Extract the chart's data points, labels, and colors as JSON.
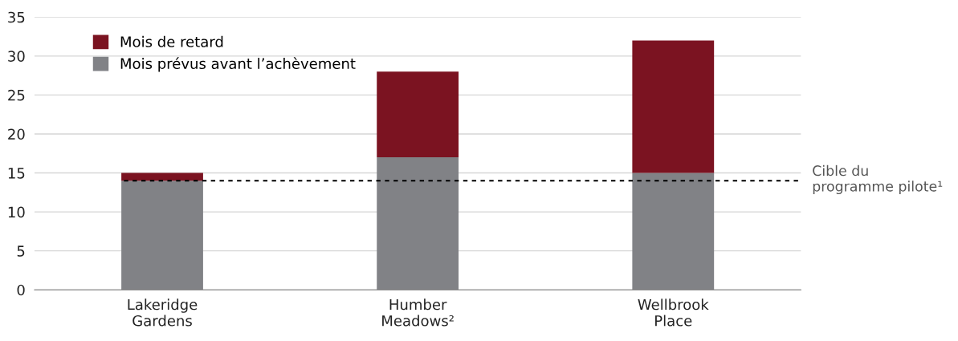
{
  "chart_data": {
    "type": "bar",
    "stacked": true,
    "categories": [
      "Lakeridge\nGardens",
      "Humber\nMeadows²",
      "Wellbrook\nPlace"
    ],
    "series": [
      {
        "name": "Mois prévus avant l’achèvement",
        "color": "#818286",
        "values": [
          14,
          17,
          15
        ]
      },
      {
        "name": "Mois de retard",
        "color": "#7b1321",
        "values": [
          1,
          11,
          17
        ]
      }
    ],
    "ylim": [
      0,
      35
    ],
    "yticks": [
      0,
      5,
      10,
      15,
      20,
      25,
      30,
      35
    ],
    "grid": "y",
    "legend": "top left",
    "ref_lines": [
      {
        "axis": "y",
        "value": 14,
        "label": "Cible du\nprogramme pilote¹",
        "color": "#000000",
        "line_style": "dotted"
      }
    ]
  }
}
